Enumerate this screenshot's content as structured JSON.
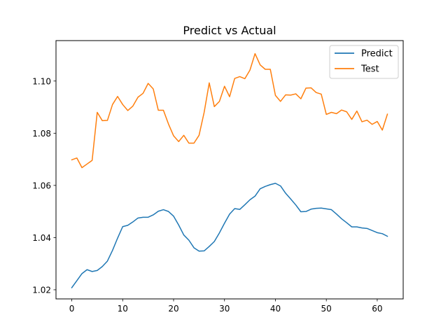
{
  "chart_data": {
    "type": "line",
    "title": "Predict vs Actual",
    "xlabel": "",
    "ylabel": "",
    "xlim": [
      -3.1,
      65.1
    ],
    "ylim": [
      1.0165,
      1.1155
    ],
    "xticks": [
      0,
      10,
      20,
      30,
      40,
      50,
      60
    ],
    "yticks": [
      1.02,
      1.04,
      1.06,
      1.08,
      1.1
    ],
    "ytick_labels": [
      "1.02",
      "1.04",
      "1.06",
      "1.08",
      "1.10"
    ],
    "grid": false,
    "legend_position": "upper right",
    "series": [
      {
        "name": "Predict",
        "color": "#1f77b4",
        "x": [
          0,
          1,
          2,
          3,
          4,
          5,
          6,
          7,
          8,
          9,
          10,
          11,
          12,
          13,
          14,
          15,
          16,
          17,
          18,
          19,
          20,
          21,
          22,
          23,
          24,
          25,
          26,
          27,
          28,
          29,
          30,
          31,
          32,
          33,
          34,
          35,
          36,
          37,
          38,
          39,
          40,
          41,
          42,
          43,
          44,
          45,
          46,
          47,
          48,
          49,
          50,
          51,
          52,
          53,
          54,
          55,
          56,
          57,
          58,
          59,
          60,
          61,
          62
        ],
        "y": [
          1.0208,
          1.0235,
          1.0262,
          1.0277,
          1.027,
          1.0274,
          1.0289,
          1.031,
          1.0351,
          1.0398,
          1.0442,
          1.0447,
          1.046,
          1.0475,
          1.0478,
          1.0478,
          1.0487,
          1.0501,
          1.0507,
          1.05,
          1.0482,
          1.0448,
          1.041,
          1.039,
          1.0361,
          1.0348,
          1.0349,
          1.0366,
          1.0385,
          1.0418,
          1.0455,
          1.049,
          1.0511,
          1.0508,
          1.0526,
          1.0545,
          1.0559,
          1.0587,
          1.0596,
          1.0603,
          1.0608,
          1.0598,
          1.057,
          1.0548,
          1.0525,
          1.0499,
          1.05,
          1.0509,
          1.0512,
          1.0513,
          1.051,
          1.0507,
          1.049,
          1.0472,
          1.0457,
          1.0441,
          1.0441,
          1.0437,
          1.0435,
          1.0427,
          1.0419,
          1.0415,
          1.0405
        ]
      },
      {
        "name": "Test",
        "color": "#ff7f0e",
        "x": [
          0,
          1,
          2,
          3,
          4,
          5,
          6,
          7,
          8,
          9,
          10,
          11,
          12,
          13,
          14,
          15,
          16,
          17,
          18,
          19,
          20,
          21,
          22,
          23,
          24,
          25,
          26,
          27,
          28,
          29,
          30,
          31,
          32,
          33,
          34,
          35,
          36,
          37,
          38,
          39,
          40,
          41,
          42,
          43,
          44,
          45,
          46,
          47,
          48,
          49,
          50,
          51,
          52,
          53,
          54,
          55,
          56,
          57,
          58,
          59,
          60,
          61,
          62
        ],
        "y": [
          1.0698,
          1.0705,
          1.0668,
          1.0682,
          1.0696,
          1.088,
          1.0848,
          1.0849,
          1.091,
          1.0941,
          1.091,
          1.0887,
          1.0904,
          1.0938,
          1.0953,
          1.0991,
          1.097,
          1.0888,
          1.0888,
          1.0835,
          1.079,
          1.0768,
          1.0792,
          1.0762,
          1.0762,
          1.0792,
          1.088,
          1.0993,
          1.0902,
          1.0922,
          1.098,
          1.094,
          1.101,
          1.1017,
          1.1009,
          1.1042,
          1.1105,
          1.1062,
          1.1045,
          1.1045,
          1.0945,
          1.0922,
          1.0947,
          1.0946,
          1.0951,
          1.0932,
          1.0973,
          1.0974,
          1.0956,
          1.095,
          1.0872,
          1.088,
          1.0875,
          1.0889,
          1.0882,
          1.0853,
          1.0885,
          1.0844,
          1.085,
          1.0834,
          1.0845,
          1.0812,
          1.0873
        ]
      }
    ]
  }
}
